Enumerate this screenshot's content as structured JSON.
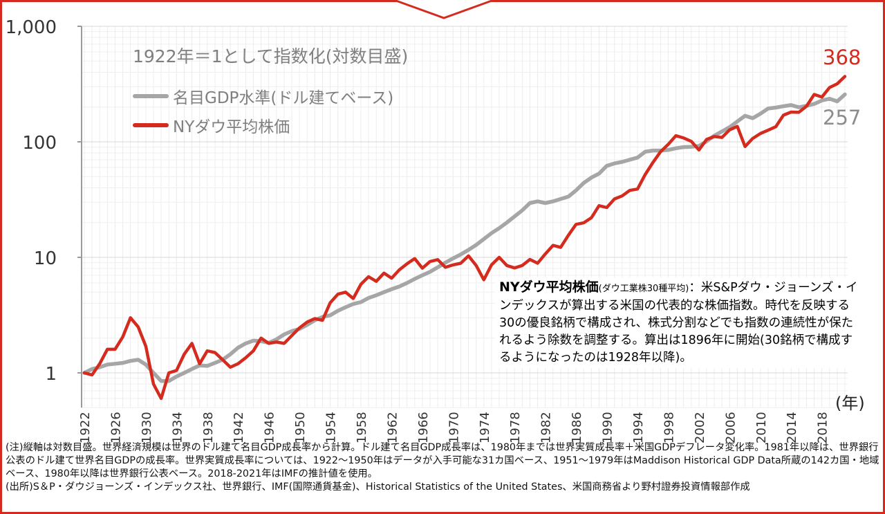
{
  "chart_data": {
    "type": "line",
    "scale": "log",
    "ylim": [
      0.5,
      1000
    ],
    "y_ticks": [
      1,
      10,
      100,
      1000
    ],
    "y_tick_labels": [
      "1",
      "10",
      "100",
      "1,000"
    ],
    "x_tick_labels": [
      "1922",
      "1926",
      "1930",
      "1934",
      "1938",
      "1942",
      "1946",
      "1950",
      "1954",
      "1958",
      "1962",
      "1966",
      "1970",
      "1974",
      "1978",
      "1982",
      "1986",
      "1990",
      "1994",
      "1998",
      "2002",
      "2006",
      "2010",
      "2014",
      "2018"
    ],
    "x_unit": "(年)",
    "legend_title": "1922年＝1として指数化(対数目盛)",
    "grid": true,
    "x": [
      1922,
      1923,
      1924,
      1925,
      1926,
      1927,
      1928,
      1929,
      1930,
      1931,
      1932,
      1933,
      1934,
      1935,
      1936,
      1937,
      1938,
      1939,
      1940,
      1941,
      1942,
      1943,
      1944,
      1945,
      1946,
      1947,
      1948,
      1949,
      1950,
      1951,
      1952,
      1953,
      1954,
      1955,
      1956,
      1957,
      1958,
      1959,
      1960,
      1961,
      1962,
      1963,
      1964,
      1965,
      1966,
      1967,
      1968,
      1969,
      1970,
      1971,
      1972,
      1973,
      1974,
      1975,
      1976,
      1977,
      1978,
      1979,
      1980,
      1981,
      1982,
      1983,
      1984,
      1985,
      1986,
      1987,
      1988,
      1989,
      1990,
      1991,
      1992,
      1993,
      1994,
      1995,
      1996,
      1997,
      1998,
      1999,
      2000,
      2001,
      2002,
      2003,
      2004,
      2005,
      2006,
      2007,
      2008,
      2009,
      2010,
      2011,
      2012,
      2013,
      2014,
      2015,
      2016,
      2017,
      2018,
      2019,
      2020,
      2021
    ],
    "series": [
      {
        "name": "名目GDP水準(ドル建てベース)",
        "color": "#a6a6a6",
        "end_label": "257",
        "values": [
          1.0,
          1.08,
          1.12,
          1.18,
          1.2,
          1.22,
          1.27,
          1.3,
          1.18,
          1.0,
          0.85,
          0.85,
          0.93,
          1.0,
          1.08,
          1.16,
          1.15,
          1.22,
          1.3,
          1.45,
          1.65,
          1.8,
          1.9,
          1.88,
          1.82,
          1.95,
          2.15,
          2.3,
          2.4,
          2.6,
          2.85,
          3.05,
          3.15,
          3.45,
          3.7,
          3.95,
          4.1,
          4.45,
          4.7,
          5.0,
          5.3,
          5.6,
          6.0,
          6.5,
          7.0,
          7.5,
          8.2,
          9.0,
          9.8,
          10.6,
          11.6,
          12.8,
          14.4,
          16.2,
          17.9,
          20.0,
          22.6,
          25.5,
          29.5,
          30.5,
          29.5,
          30.5,
          32.0,
          33.5,
          38.0,
          44.0,
          49.0,
          53.0,
          62.0,
          65.0,
          67.0,
          70.0,
          73.0,
          82.0,
          84.0,
          84.0,
          85.0,
          88.0,
          90.0,
          90.5,
          92.0,
          101.0,
          113.0,
          123.0,
          134.0,
          150.0,
          168.0,
          160.0,
          175.0,
          194.0,
          198.0,
          203.0,
          208.0,
          199.0,
          205.0,
          213.0,
          228.0,
          236.0,
          224.0,
          257.0
        ]
      },
      {
        "name": "NYダウ平均株価",
        "color": "#d52b1e",
        "end_label": "368",
        "values": [
          1.0,
          0.96,
          1.2,
          1.6,
          1.6,
          2.05,
          3.0,
          2.5,
          1.7,
          0.8,
          0.6,
          1.0,
          1.05,
          1.45,
          1.8,
          1.2,
          1.55,
          1.5,
          1.3,
          1.12,
          1.2,
          1.35,
          1.55,
          2.0,
          1.8,
          1.85,
          1.8,
          2.1,
          2.45,
          2.75,
          2.95,
          2.85,
          4.05,
          4.8,
          5.0,
          4.4,
          5.85,
          6.8,
          6.2,
          7.3,
          6.6,
          7.8,
          8.8,
          9.75,
          8.05,
          9.2,
          9.55,
          8.2,
          8.6,
          8.9,
          10.3,
          8.5,
          6.4,
          8.6,
          10.0,
          8.5,
          8.1,
          8.5,
          9.6,
          8.9,
          10.7,
          12.7,
          12.2,
          15.5,
          19.3,
          19.9,
          22.0,
          28.0,
          27.0,
          32.0,
          34.0,
          38.0,
          39.0,
          52.0,
          66.0,
          82.0,
          95.0,
          113.0,
          108.0,
          101.0,
          85.0,
          105.0,
          111.0,
          109.0,
          127.0,
          136.0,
          91.0,
          107.0,
          118.0,
          126.0,
          135.0,
          170.0,
          181.0,
          180.0,
          203.0,
          257.0,
          244.0,
          295.0,
          318.0,
          368.0
        ]
      }
    ]
  },
  "annotation": {
    "heading": "NYダウ平均株価",
    "heading_sub": "(ダウ工業株30種平均)",
    "body": "：米S&Pダウ・ジョーンズ・インデックスが算出する米国の代表的な株価指数。時代を反映する30の優良銘柄で構成され、株式分割などでも指数の連続性が保たれるよう除数を調整する。算出は1896年に開始(30銘柄で構成するようになったのは1928年以降)。"
  },
  "notes": {
    "line1": "(注)縦軸は対数目盛。世界経済規模は世界のドル建て名目GDP成長率から計算。ドル建て名目GDP成長率は、1980年までは世界実質成長率＋米国GDPデフレータ変化率。1981年以降は、世界銀行公表のドル建て世界名目GDPの成長率。世界実質成長率については、1922～1950年はデータが入手可能な31カ国ベース、1951～1979年はMaddison Historical GDP Data所蔵の142カ国・地域ベース、1980年以降は世界銀行公表ベース。2018-2021年はIMFの推計値を使用。",
    "line2": "(出所)S＆P・ダウジョーンズ・インデックス社、世界銀行、IMF(国際通貨基金)、Historical Statistics of the United States、米国商務省より野村證券投資情報部作成"
  }
}
